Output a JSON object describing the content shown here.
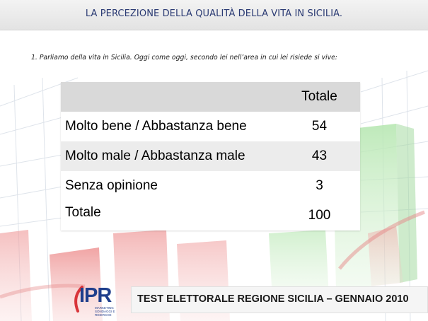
{
  "header": {
    "title": "LA PERCEZIONE DELLA QUALITÀ DELLA VITA IN SICILIA."
  },
  "question": "1. Parliamo della vita in Sicilia. Oggi come oggi, secondo lei nell’area in cui lei risiede si vive:",
  "table": {
    "column_header": "Totale",
    "rows": [
      {
        "label": "Molto bene / Abbastanza bene",
        "value": "54"
      },
      {
        "label": "Molto male / Abbastanza male",
        "value": "43"
      },
      {
        "label": "Senza opinione",
        "value": "3"
      },
      {
        "label": "Totale",
        "value": "100"
      }
    ]
  },
  "footer": {
    "logo_text": "IPR",
    "logo_subtext": "MARKETING SONDAGGI E RICERCHE",
    "caption": "TEST ELETTORALE REGIONE SICILIA – GENNAIO 2010"
  },
  "colors": {
    "title_text": "#2a3a73",
    "logo_blue": "#1f3e8c",
    "logo_red": "#d8343a",
    "bg_green": "#8fd68f",
    "bg_red": "#e88a8a"
  }
}
